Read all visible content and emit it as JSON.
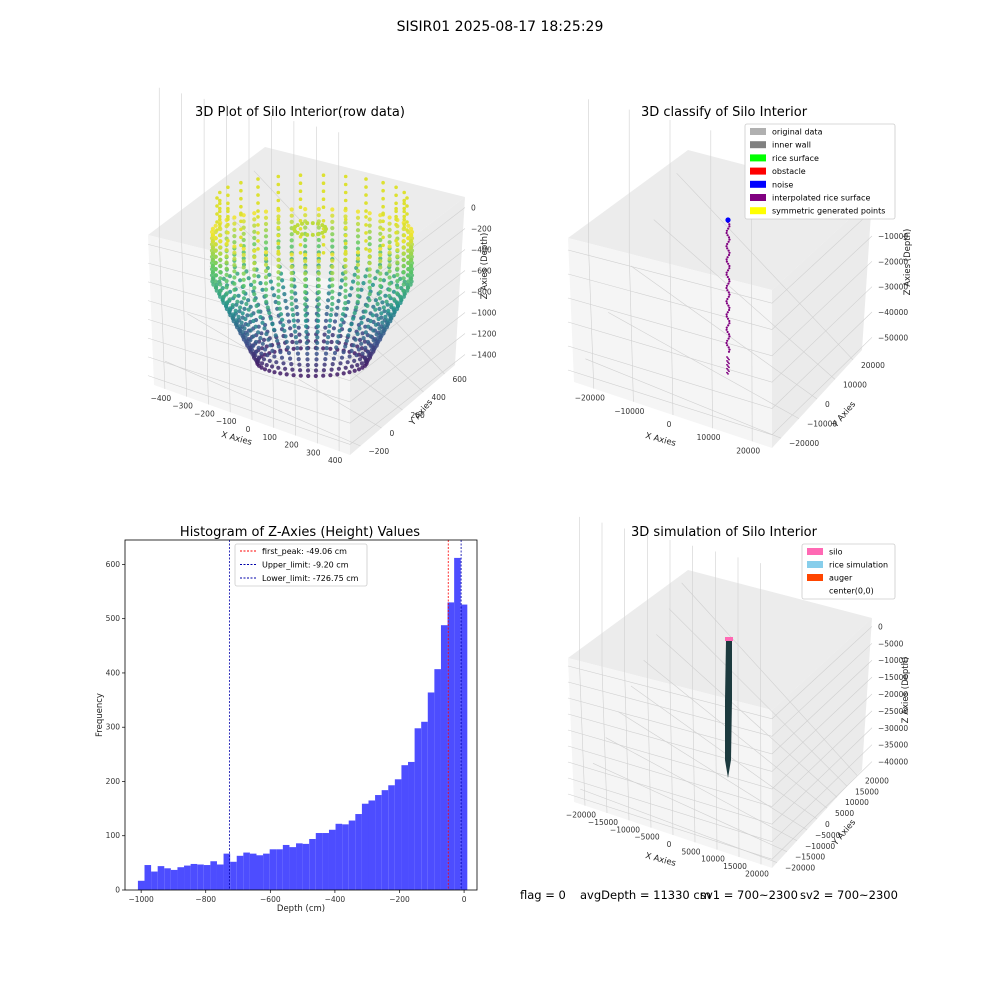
{
  "suptitle": "SISIR01 2025-08-17 18:25:29",
  "footer": {
    "flag": "flag = 0",
    "avg_depth": "avgDepth = 11330 cm",
    "sv1": "sv1 = 700~2300",
    "sv2": "sv2 = 700~2300"
  },
  "chart_data": [
    {
      "id": "raw3d",
      "type": "scatter",
      "title": "3D Plot of Silo Interior(row data)",
      "xlabel": "X Axies",
      "ylabel": "Y Axies",
      "zlabel": "Z Axies (Depth)",
      "x_ticks": [
        "−400",
        "−300",
        "−200",
        "−100",
        "0",
        "100",
        "200",
        "300",
        "400"
      ],
      "y_ticks": [
        "−200",
        "0",
        "200",
        "400",
        "600"
      ],
      "z_ticks": [
        "0",
        "−200",
        "−400",
        "−600",
        "−800",
        "−1000",
        "−1200",
        "−1400"
      ],
      "xlim": [
        -420,
        420
      ],
      "ylim": [
        -220,
        720
      ],
      "zlim": [
        -1500,
        50
      ],
      "colormap": "viridis",
      "description_rings": [
        {
          "z": -1450,
          "radius": 180
        },
        {
          "z": -1400,
          "radius": 230
        },
        {
          "z": -1300,
          "radius": 270
        },
        {
          "z": -1200,
          "radius": 300
        },
        {
          "z": -1000,
          "radius": 320
        },
        {
          "z": -800,
          "radius": 330
        },
        {
          "z": -600,
          "radius": 340
        },
        {
          "z": -400,
          "radius": 345
        },
        {
          "z": -200,
          "radius": 348
        }
      ]
    },
    {
      "id": "classify3d",
      "type": "scatter",
      "title": "3D classify of Silo Interior",
      "xlabel": "X Axies",
      "ylabel": "Y Axies",
      "zlabel": "Z Axies (Depth)",
      "x_ticks": [
        "−20000",
        "−10000",
        "0",
        "10000",
        "20000"
      ],
      "y_ticks": [
        "−20000",
        "−10000",
        "0",
        "10000",
        "20000"
      ],
      "z_ticks": [
        "0",
        "−10000",
        "−20000",
        "−30000",
        "−40000",
        "−50000"
      ],
      "legend": [
        {
          "label": "original data",
          "color": "#b0b0b0"
        },
        {
          "label": "inner wall",
          "color": "#808080"
        },
        {
          "label": "rice surface",
          "color": "#00ff00"
        },
        {
          "label": "obstacle",
          "color": "#ff0000"
        },
        {
          "label": "noise",
          "color": "#0000ff"
        },
        {
          "label": "interpolated rice surface",
          "color": "#800080"
        },
        {
          "label": "symmetric generated points",
          "color": "#ffff00"
        }
      ]
    },
    {
      "id": "hist",
      "type": "bar",
      "title": "Histogram of Z-Axies (Height) Values",
      "xlabel": "Depth (cm)",
      "ylabel": "Frequency",
      "xlim": [
        -1050,
        40
      ],
      "ylim": [
        0,
        645
      ],
      "x_ticks": [
        -1000,
        -800,
        -600,
        -400,
        -200,
        0
      ],
      "x_tick_labels": [
        "−1000",
        "−800",
        "−600",
        "−400",
        "−200",
        "0"
      ],
      "y_ticks": [
        0,
        100,
        200,
        300,
        400,
        500,
        600
      ],
      "bin_start": -1010,
      "bin_width": 20.4,
      "values": [
        17,
        46,
        34,
        44,
        40,
        37,
        42,
        45,
        48,
        47,
        46,
        53,
        47,
        67,
        52,
        63,
        69,
        67,
        64,
        67,
        75,
        75,
        83,
        79,
        86,
        85,
        94,
        105,
        105,
        111,
        122,
        121,
        128,
        140,
        159,
        165,
        175,
        184,
        193,
        204,
        230,
        236,
        298,
        310,
        364,
        407,
        488,
        530,
        612,
        526
      ],
      "bar_color": "#4d4dff",
      "vlines": [
        {
          "label": "first_peak: -49.06 cm",
          "x": -49.06,
          "color": "#ff0000"
        },
        {
          "label": "Upper_limit: -9.20 cm",
          "x": -9.2,
          "color": "#0000aa"
        },
        {
          "label": "Lower_limit: -726.75 cm",
          "x": -726.75,
          "color": "#0000aa"
        }
      ]
    },
    {
      "id": "sim3d",
      "type": "scatter",
      "title": "3D simulation of Silo Interior",
      "xlabel": "X Axies",
      "ylabel": "Y Axies",
      "zlabel": "Z Axies (Depth)",
      "x_ticks": [
        "−20000",
        "−15000",
        "−10000",
        "−5000",
        "0",
        "5000",
        "10000",
        "15000",
        "20000"
      ],
      "y_ticks": [
        "−20000",
        "−15000",
        "−10000",
        "−5000",
        "0",
        "5000",
        "10000",
        "15000",
        "20000"
      ],
      "z_ticks": [
        "0",
        "−5000",
        "−10000",
        "−15000",
        "−20000",
        "−25000",
        "−30000",
        "−35000",
        "−40000"
      ],
      "legend": [
        {
          "label": "silo",
          "color": "#ff69b4"
        },
        {
          "label": "rice simulation",
          "color": "#87ceeb"
        },
        {
          "label": "auger",
          "color": "#ff4500"
        },
        {
          "label": "center(0,0)",
          "color": "#ffffff"
        }
      ]
    }
  ]
}
